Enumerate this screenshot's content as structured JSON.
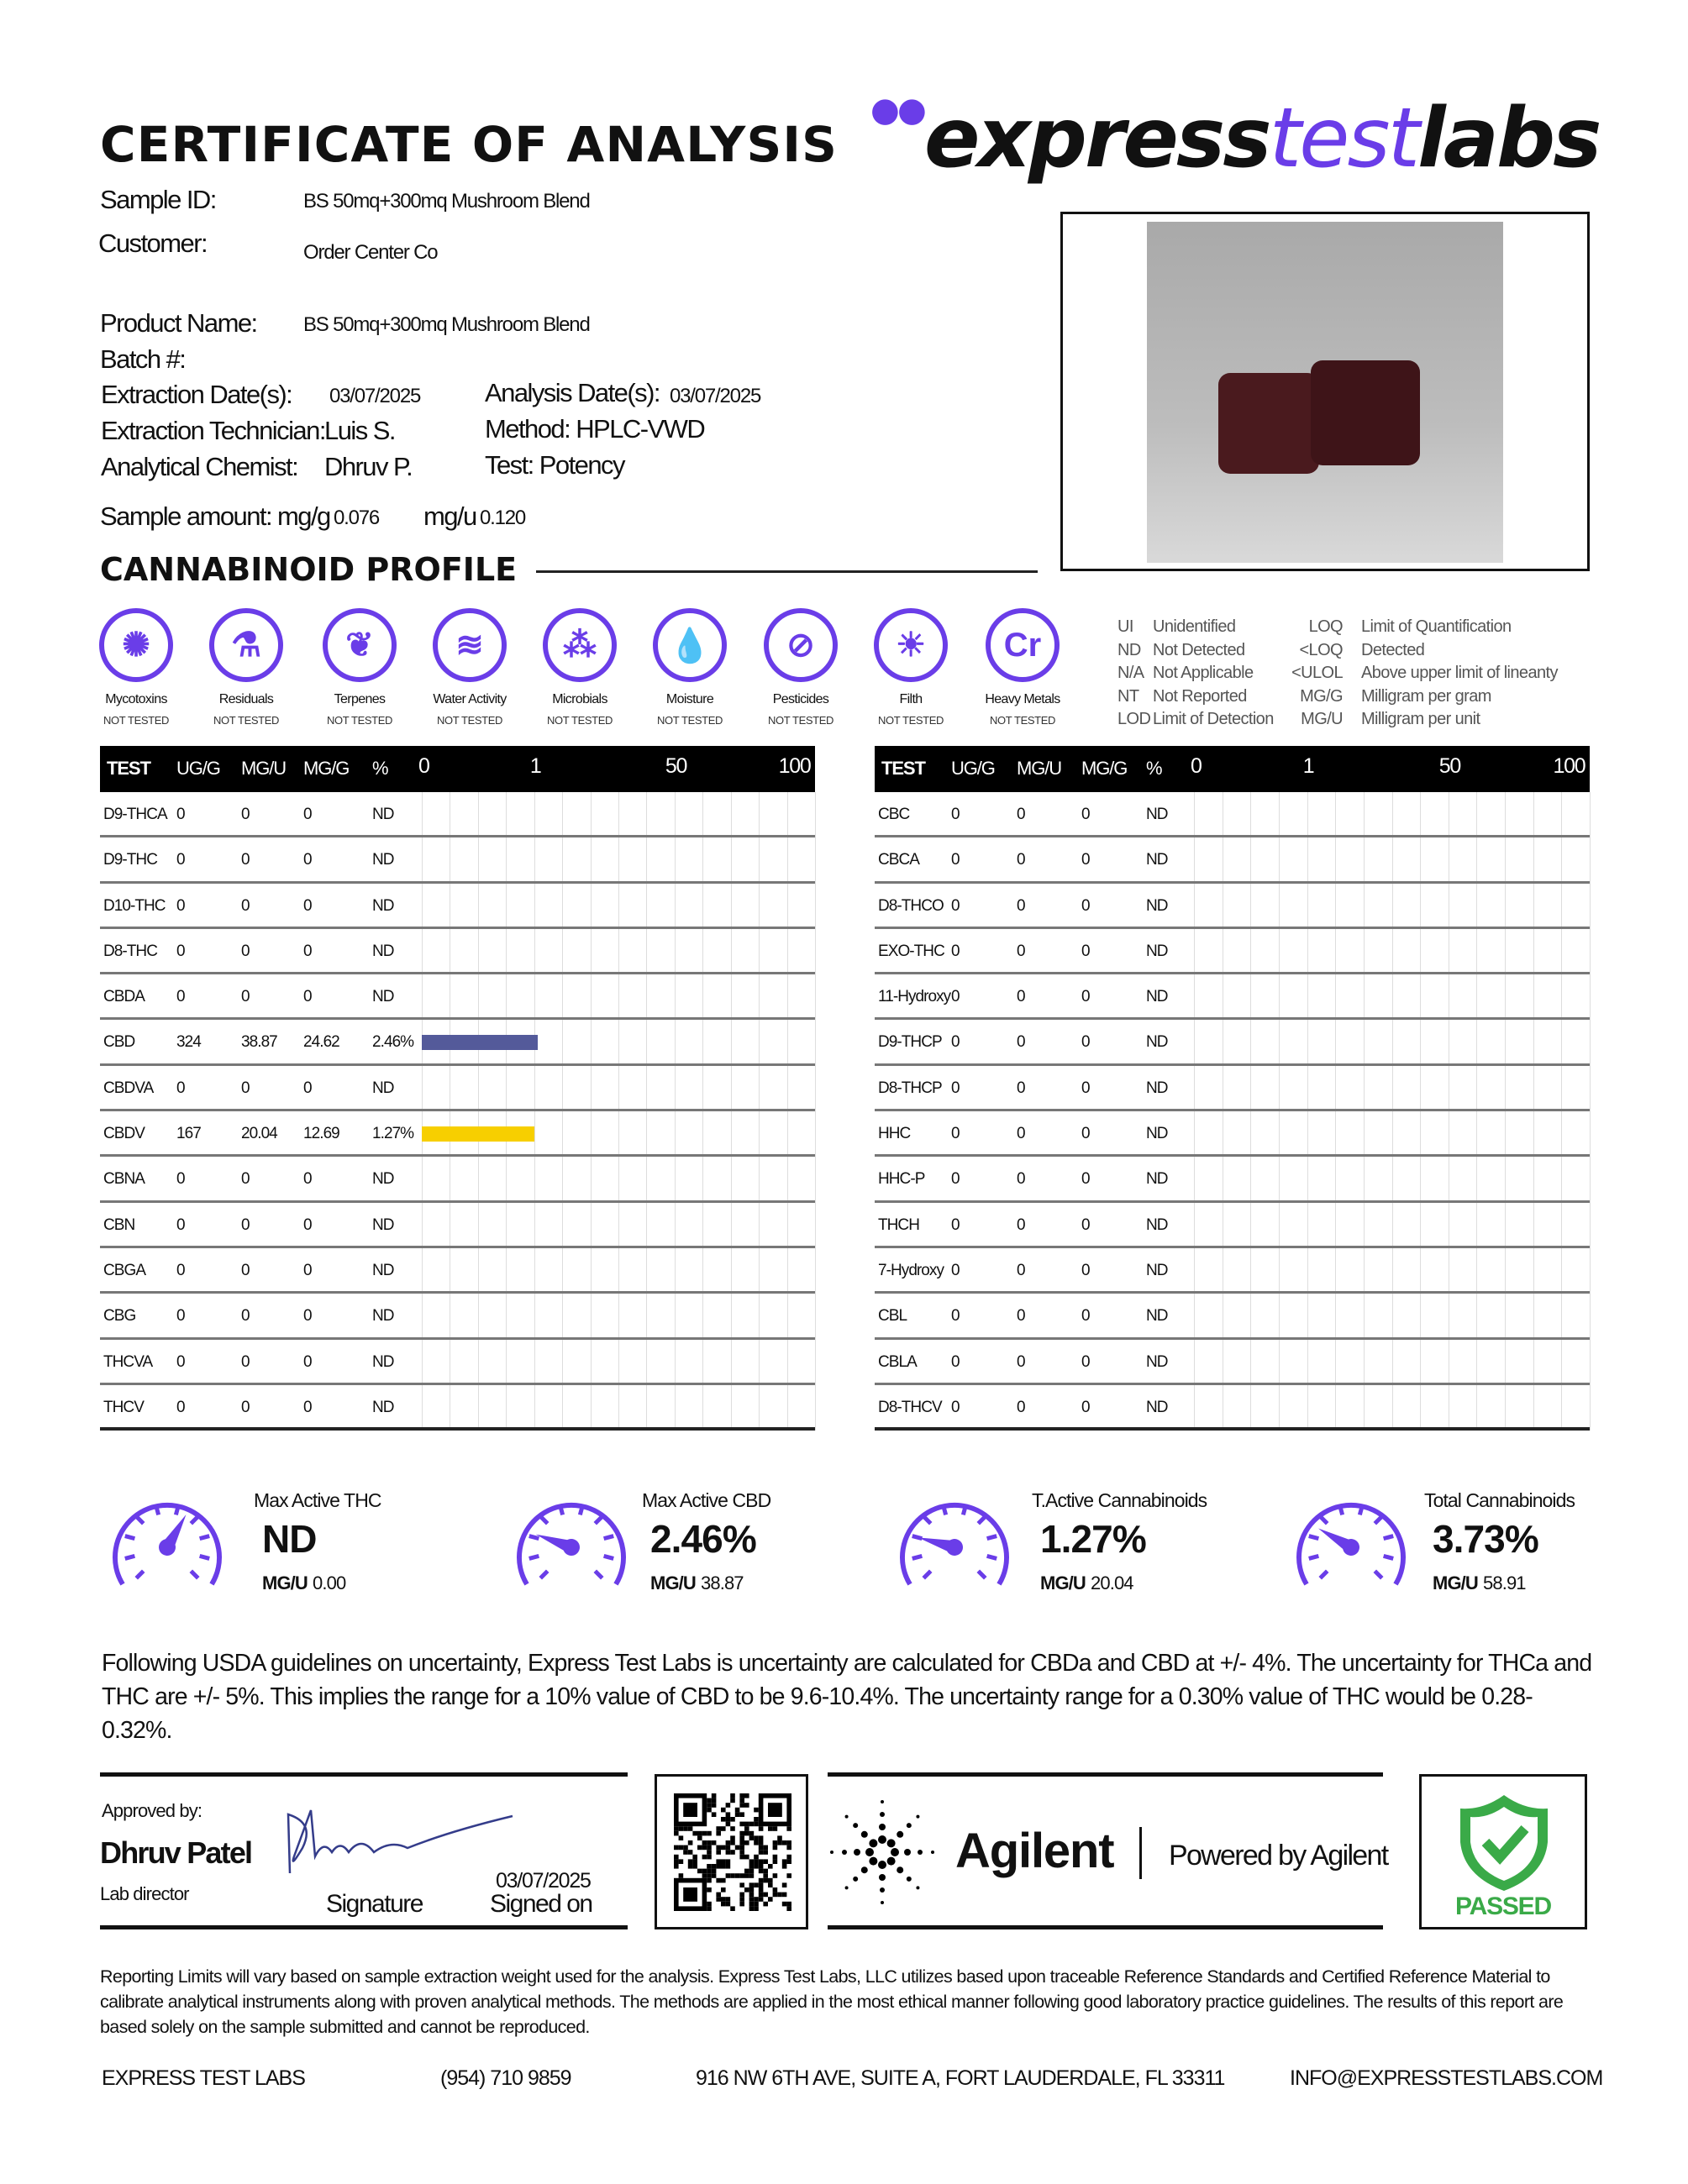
{
  "header": {
    "title": "CERTIFICATE OF ANALYSIS",
    "logo": {
      "part1": "express",
      "part2": "test",
      "part3": "labs"
    },
    "accent": "#6a3de8"
  },
  "sample": {
    "sample_id_label": "Sample ID:",
    "sample_id": "BS 50mq+300mq Mushroom Blend",
    "customer_label": "Customer:",
    "customer": "Order Center Co",
    "product_label": "Product Name:",
    "product": "BS 50mq+300mq Mushroom Blend",
    "batch_label": "Batch #:",
    "extraction_date_label": "Extraction Date(s):",
    "extraction_date": "03/07/2025",
    "analysis_date_label": "Analysis Date(s):",
    "analysis_date": "03/07/2025",
    "technician_label": "Extraction Technician:",
    "technician": "Luis S.",
    "method": "Method: HPLC-VWD",
    "chemist_label": "Analytical Chemist:",
    "chemist": "Dhruv P.",
    "test": "Test: Potency",
    "amount_label": "Sample amount:",
    "mgg_label": "mg/g",
    "mgg": "0.076",
    "mgu_label": "mg/u",
    "mgu": "0.120"
  },
  "profile_heading": "CANNABINOID PROFILE",
  "tests": [
    {
      "name": "Mycotoxins",
      "status": "NOT TESTED",
      "icon": "virus-icon",
      "glyph": "✺"
    },
    {
      "name": "Residuals",
      "status": "NOT TESTED",
      "icon": "flask-warning-icon",
      "glyph": "⚗"
    },
    {
      "name": "Terpenes",
      "status": "NOT TESTED",
      "icon": "leaf-icon",
      "glyph": "❦"
    },
    {
      "name": "Water Activity",
      "status": "NOT TESTED",
      "icon": "waves-icon",
      "glyph": "≋"
    },
    {
      "name": "Microbials",
      "status": "NOT TESTED",
      "icon": "microbe-icon",
      "glyph": "⁂"
    },
    {
      "name": "Moisture",
      "status": "NOT TESTED",
      "icon": "droplets-icon",
      "glyph": "💧"
    },
    {
      "name": "Pesticides",
      "status": "NOT TESTED",
      "icon": "spray-icon",
      "glyph": "⊘"
    },
    {
      "name": "Filth",
      "status": "NOT TESTED",
      "icon": "drop-icon",
      "glyph": "☀"
    },
    {
      "name": "Heavy Metals",
      "status": "NOT TESTED",
      "icon": "chromium-icon",
      "glyph": "Cr"
    }
  ],
  "legend": [
    {
      "k": "UI",
      "v": "Unidentified"
    },
    {
      "k": "ND",
      "v": "Not Detected"
    },
    {
      "k": "N/A",
      "v": "Not Applicable"
    },
    {
      "k": "NT",
      "v": "Not Reported"
    },
    {
      "k": "LOD",
      "v": "Limit of Detection"
    },
    {
      "k": "LOQ",
      "v": "Limit of Quantification"
    },
    {
      "k": "<LOQ",
      "v": "Detected"
    },
    {
      "k": "<ULOL",
      "v": "Above upper limit of lineanty"
    },
    {
      "k": "MG/G",
      "v": "Milligram per gram"
    },
    {
      "k": "MG/U",
      "v": "Milligram per unit"
    }
  ],
  "table_headers": [
    "TEST",
    "UG/G",
    "MG/U",
    "MG/G",
    "%"
  ],
  "scale_ticks": [
    "0",
    "1",
    "50",
    "100"
  ],
  "bar_colors": {
    "CBD": "#545a9a",
    "CBDV": "#f7cf00"
  },
  "left_rows": [
    [
      "D9-THCA",
      "0",
      "0",
      "0",
      "ND"
    ],
    [
      "D9-THC",
      "0",
      "0",
      "0",
      "ND"
    ],
    [
      "D10-THC",
      "0",
      "0",
      "0",
      "ND"
    ],
    [
      "D8-THC",
      "0",
      "0",
      "0",
      "ND"
    ],
    [
      "CBDA",
      "0",
      "0",
      "0",
      "ND"
    ],
    [
      "CBD",
      "324",
      "38.87",
      "24.62",
      "2.46%"
    ],
    [
      "CBDVA",
      "0",
      "0",
      "0",
      "ND"
    ],
    [
      "CBDV",
      "167",
      "20.04",
      "12.69",
      "1.27%"
    ],
    [
      "CBNA",
      "0",
      "0",
      "0",
      "ND"
    ],
    [
      "CBN",
      "0",
      "0",
      "0",
      "ND"
    ],
    [
      "CBGA",
      "0",
      "0",
      "0",
      "ND"
    ],
    [
      "CBG",
      "0",
      "0",
      "0",
      "ND"
    ],
    [
      "THCVA",
      "0",
      "0",
      "0",
      "ND"
    ],
    [
      "THCV",
      "0",
      "0",
      "0",
      "ND"
    ]
  ],
  "left_percent": [
    0,
    0,
    0,
    0,
    0,
    2.46,
    0,
    1.27,
    0,
    0,
    0,
    0,
    0,
    0
  ],
  "right_rows": [
    [
      "CBC",
      "0",
      "0",
      "0",
      "ND"
    ],
    [
      "CBCA",
      "0",
      "0",
      "0",
      "ND"
    ],
    [
      "D8-THCO",
      "0",
      "0",
      "0",
      "ND"
    ],
    [
      "EXO-THC",
      "0",
      "0",
      "0",
      "ND"
    ],
    [
      "11-Hydroxy",
      "0",
      "0",
      "0",
      "ND"
    ],
    [
      "D9-THCP",
      "0",
      "0",
      "0",
      "ND"
    ],
    [
      "D8-THCP",
      "0",
      "0",
      "0",
      "ND"
    ],
    [
      "HHC",
      "0",
      "0",
      "0",
      "ND"
    ],
    [
      "HHC-P",
      "0",
      "0",
      "0",
      "ND"
    ],
    [
      "THCH",
      "0",
      "0",
      "0",
      "ND"
    ],
    [
      "7-Hydroxy",
      "0",
      "0",
      "0",
      "ND"
    ],
    [
      "CBL",
      "0",
      "0",
      "0",
      "ND"
    ],
    [
      "CBLA",
      "0",
      "0",
      "0",
      "ND"
    ],
    [
      "D8-THCV",
      "0",
      "0",
      "0",
      "ND"
    ]
  ],
  "summary": [
    {
      "label": "Max Active THC",
      "value": "ND",
      "mgu_label": "MG/U",
      "mgu": "0.00"
    },
    {
      "label": "Max Active CBD",
      "value": "2.46%",
      "mgu_label": "MG/U",
      "mgu": "38.87"
    },
    {
      "label": "T.Active Cannabinoids",
      "value": "1.27%",
      "mgu_label": "MG/U",
      "mgu": "20.04"
    },
    {
      "label": "Total Cannabinoids",
      "value": "3.73%",
      "mgu_label": "MG/U",
      "mgu": "58.91"
    }
  ],
  "uncertainty": "Following USDA guidelines on uncertainty, Express Test Labs is uncertainty are calculated for CBDa and CBD at +/- 4%. The uncertainty for THCa and THC are +/- 5%. This implies the range for a 10% value of CBD to be 9.6-10.4%. The uncertainty range for a 0.30% value of THC would be 0.28-0.32%.",
  "approval": {
    "approved_by": "Approved by:",
    "name": "Dhruv Patel",
    "role": "Lab director",
    "signature_label": "Signature",
    "date": "03/07/2025",
    "signed_on": "Signed on"
  },
  "agilent": {
    "name": "Agilent",
    "powered": "Powered by Agilent"
  },
  "status": {
    "label": "PASSED",
    "color": "#3aaa48"
  },
  "disclaimer": "Reporting Limits will vary based on sample extraction weight used for the analysis. Express Test Labs, LLC utilizes based upon traceable Reference Standards and Certified Reference Material to calibrate analytical instruments along with proven analytical methods. The methods are applied in the most ethical manner following good laboratory practice guidelines. The results of this report are based solely on the sample submitted and cannot be reproduced.",
  "contact": {
    "company": "EXPRESS TEST LABS",
    "phone": "(954) 710 9859",
    "address": "916 NW 6TH AVE, SUITE A, FORT LAUDERDALE, FL 33311",
    "email": "INFO@EXPRESSTESTLABS.COM"
  }
}
